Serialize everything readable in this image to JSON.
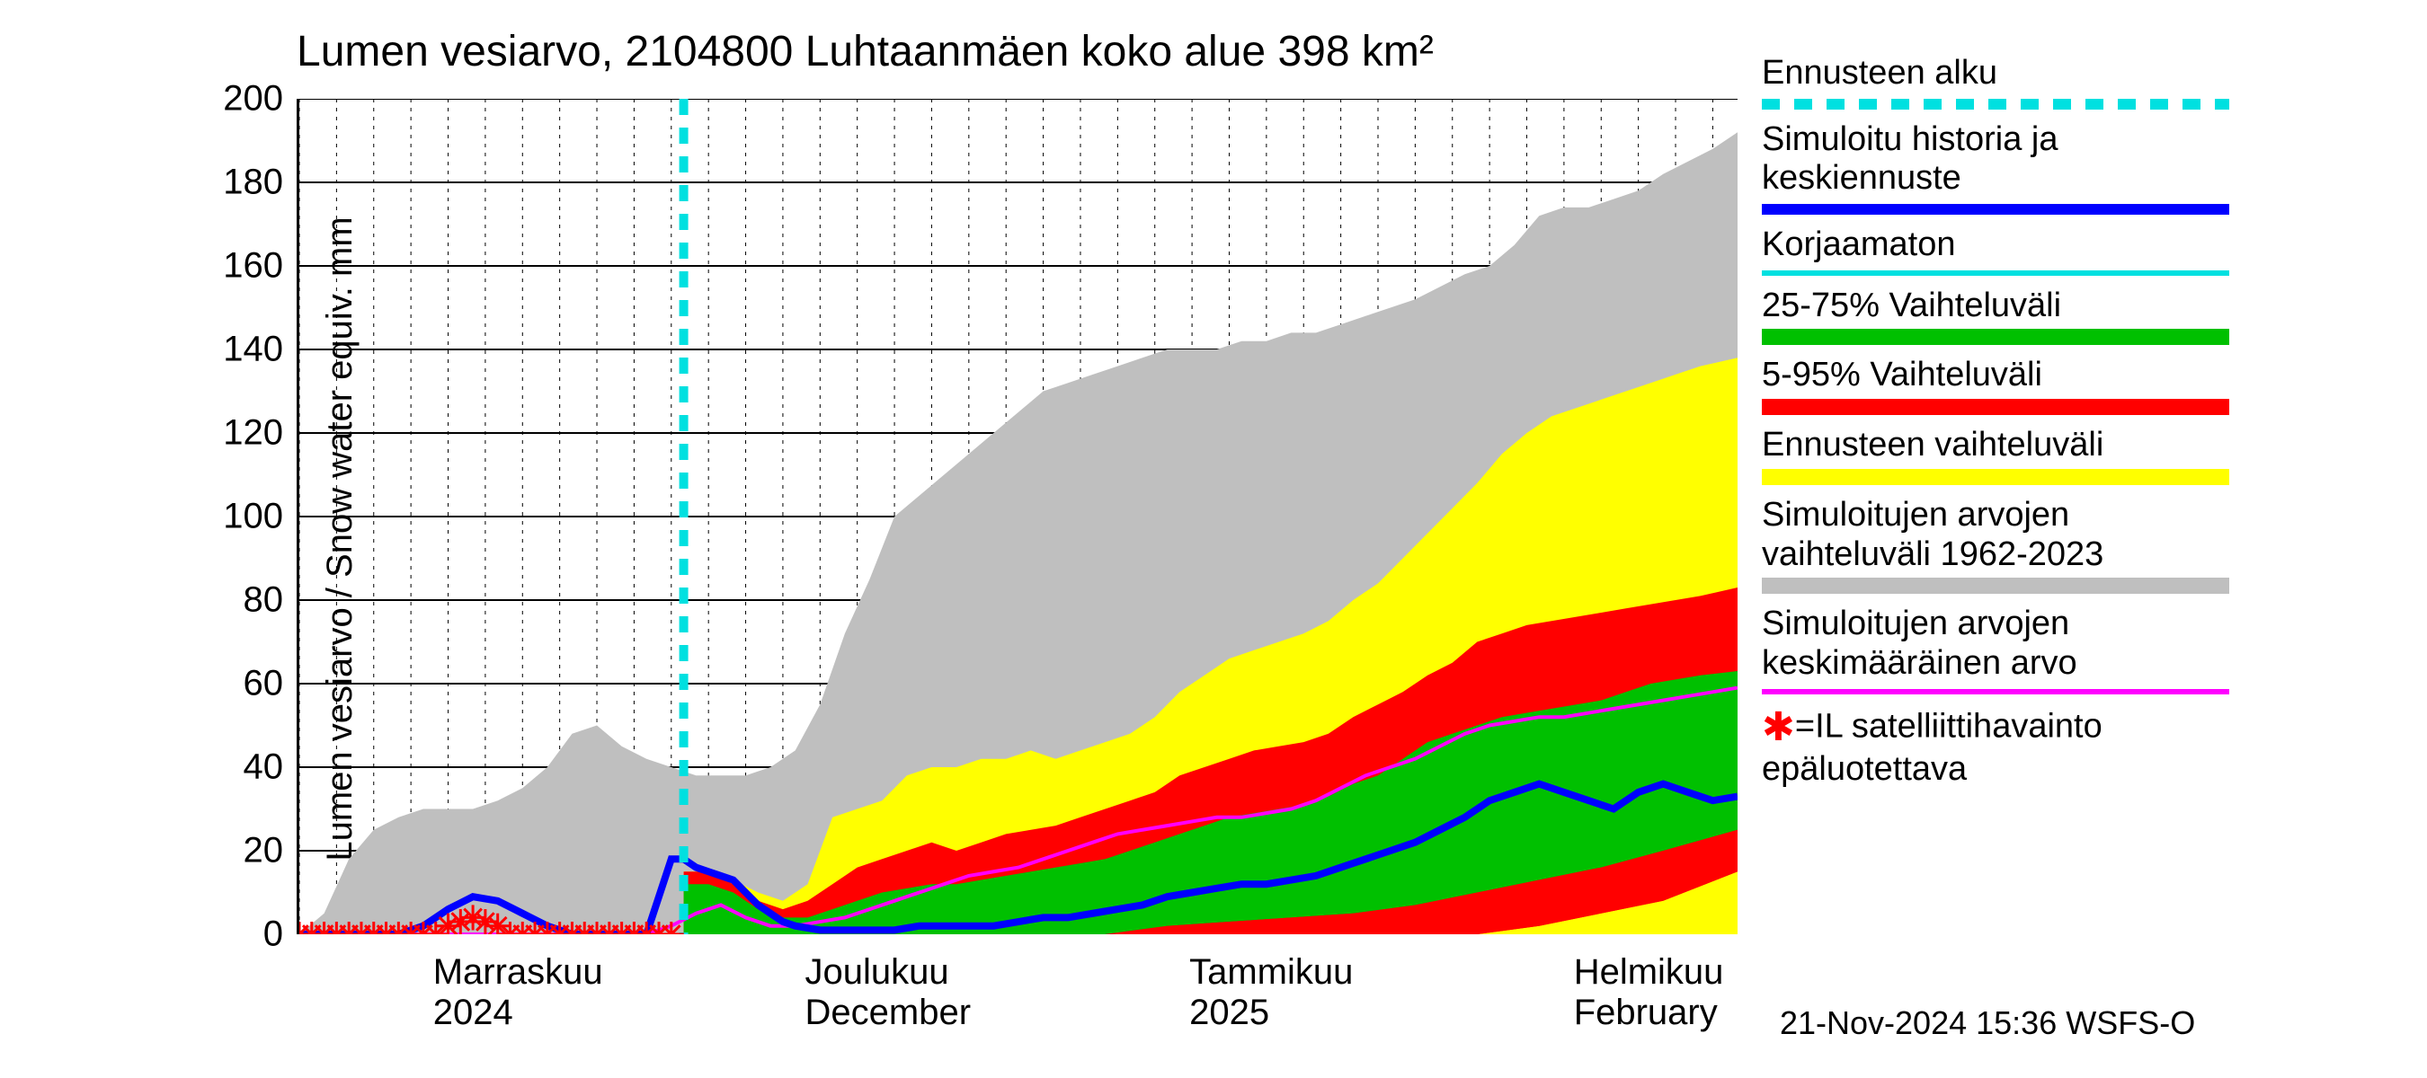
{
  "title": "Lumen vesiarvo, 2104800 Luhtaanmäen koko alue 398 km²",
  "y_axis_label": "Lumen vesiarvo / Snow water equiv.    mm",
  "footer": "21-Nov-2024 15:36 WSFS-O",
  "colors": {
    "gray_band": "#bfbfbf",
    "yellow_band": "#ffff00",
    "red_band": "#ff0000",
    "green_band": "#00c000",
    "blue_line": "#0000ff",
    "magenta_line": "#ff00ff",
    "cyan_dash": "#00e0e0",
    "cyan_thin": "#00e0e0",
    "marker_red": "#ff0000",
    "grid": "#000000",
    "bg": "#ffffff",
    "text": "#000000"
  },
  "axes": {
    "ymin": 0,
    "ymax": 200,
    "ytick_step": 20,
    "yticks": [
      0,
      20,
      40,
      60,
      80,
      100,
      120,
      140,
      160,
      180,
      200
    ],
    "x_start_date": "2024-10-21",
    "x_end_date": "2025-02-14",
    "x_days": 116
  },
  "x_month_labels": [
    {
      "label_top": "Marraskuu",
      "label_bot": "2024",
      "day_offset": 11
    },
    {
      "label_top": "Joulukuu",
      "label_bot": "December",
      "day_offset": 41
    },
    {
      "label_top": "Tammikuu",
      "label_bot": "2025",
      "day_offset": 72
    },
    {
      "label_top": "Helmikuu",
      "label_bot": "February",
      "day_offset": 103
    }
  ],
  "x_month_starts_day_offset": [
    11,
    41,
    72,
    103
  ],
  "forecast_start_day_offset": 31,
  "legend": [
    {
      "label": "Ennusteen alku",
      "type": "dashed",
      "color_key": "cyan_dash"
    },
    {
      "label": "Simuloitu historia ja\nkeskiennuste",
      "type": "line",
      "color_key": "blue_line",
      "thick": true
    },
    {
      "label": "Korjaamaton",
      "type": "line",
      "color_key": "cyan_thin",
      "thick": false
    },
    {
      "label": "25-75% Vaihteluväli",
      "type": "fill",
      "color_key": "green_band"
    },
    {
      "label": "5-95% Vaihteluväli",
      "type": "fill",
      "color_key": "red_band"
    },
    {
      "label": "Ennusteen vaihteluväli",
      "type": "fill",
      "color_key": "yellow_band"
    },
    {
      "label": "Simuloitujen arvojen\nvaihteluväli 1962-2023",
      "type": "fill",
      "color_key": "gray_band"
    },
    {
      "label": "Simuloitujen arvojen\nkeskimääräinen arvo",
      "type": "line",
      "color_key": "magenta_line",
      "thick": false
    },
    {
      "label": "=IL satelliittihavainto\nepäluotettava",
      "type": "marker",
      "color_key": "marker_red"
    }
  ],
  "series": {
    "gray_upper": [
      [
        0,
        0
      ],
      [
        2,
        5
      ],
      [
        4,
        18
      ],
      [
        6,
        25
      ],
      [
        8,
        28
      ],
      [
        10,
        30
      ],
      [
        12,
        30
      ],
      [
        14,
        30
      ],
      [
        16,
        32
      ],
      [
        18,
        35
      ],
      [
        20,
        40
      ],
      [
        22,
        48
      ],
      [
        24,
        50
      ],
      [
        26,
        45
      ],
      [
        28,
        42
      ],
      [
        30,
        40
      ],
      [
        32,
        38
      ],
      [
        34,
        38
      ],
      [
        36,
        38
      ],
      [
        38,
        40
      ],
      [
        40,
        44
      ],
      [
        42,
        55
      ],
      [
        44,
        72
      ],
      [
        46,
        85
      ],
      [
        48,
        100
      ],
      [
        50,
        105
      ],
      [
        52,
        110
      ],
      [
        54,
        115
      ],
      [
        56,
        120
      ],
      [
        58,
        125
      ],
      [
        60,
        130
      ],
      [
        62,
        132
      ],
      [
        64,
        134
      ],
      [
        66,
        136
      ],
      [
        68,
        138
      ],
      [
        70,
        140
      ],
      [
        72,
        140
      ],
      [
        74,
        140
      ],
      [
        76,
        142
      ],
      [
        78,
        142
      ],
      [
        80,
        144
      ],
      [
        82,
        144
      ],
      [
        84,
        146
      ],
      [
        86,
        148
      ],
      [
        88,
        150
      ],
      [
        90,
        152
      ],
      [
        92,
        155
      ],
      [
        94,
        158
      ],
      [
        96,
        160
      ],
      [
        98,
        165
      ],
      [
        100,
        172
      ],
      [
        102,
        174
      ],
      [
        104,
        174
      ],
      [
        106,
        176
      ],
      [
        108,
        178
      ],
      [
        110,
        182
      ],
      [
        112,
        185
      ],
      [
        114,
        188
      ],
      [
        116,
        192
      ]
    ],
    "gray_lower": [
      [
        0,
        0
      ],
      [
        20,
        0
      ],
      [
        40,
        0
      ],
      [
        60,
        0
      ],
      [
        80,
        0
      ],
      [
        100,
        0
      ],
      [
        110,
        0
      ],
      [
        112,
        1
      ],
      [
        114,
        2
      ],
      [
        116,
        3
      ]
    ],
    "yellow_upper": [
      [
        31,
        15
      ],
      [
        33,
        15
      ],
      [
        35,
        13
      ],
      [
        37,
        10
      ],
      [
        39,
        8
      ],
      [
        41,
        12
      ],
      [
        43,
        28
      ],
      [
        45,
        30
      ],
      [
        47,
        32
      ],
      [
        49,
        38
      ],
      [
        51,
        40
      ],
      [
        53,
        40
      ],
      [
        55,
        42
      ],
      [
        57,
        42
      ],
      [
        59,
        44
      ],
      [
        61,
        42
      ],
      [
        63,
        44
      ],
      [
        65,
        46
      ],
      [
        67,
        48
      ],
      [
        69,
        52
      ],
      [
        71,
        58
      ],
      [
        73,
        62
      ],
      [
        75,
        66
      ],
      [
        77,
        68
      ],
      [
        79,
        70
      ],
      [
        81,
        72
      ],
      [
        83,
        75
      ],
      [
        85,
        80
      ],
      [
        87,
        84
      ],
      [
        89,
        90
      ],
      [
        91,
        96
      ],
      [
        93,
        102
      ],
      [
        95,
        108
      ],
      [
        97,
        115
      ],
      [
        99,
        120
      ],
      [
        101,
        124
      ],
      [
        103,
        126
      ],
      [
        105,
        128
      ],
      [
        107,
        130
      ],
      [
        109,
        132
      ],
      [
        111,
        134
      ],
      [
        113,
        136
      ],
      [
        116,
        138
      ]
    ],
    "yellow_lower": [
      [
        31,
        0
      ],
      [
        40,
        0
      ],
      [
        50,
        0
      ],
      [
        60,
        0
      ],
      [
        70,
        0
      ],
      [
        80,
        0
      ],
      [
        90,
        0
      ],
      [
        100,
        0
      ],
      [
        110,
        0
      ],
      [
        116,
        0
      ]
    ],
    "red_upper": [
      [
        31,
        15
      ],
      [
        33,
        15
      ],
      [
        35,
        12
      ],
      [
        37,
        8
      ],
      [
        39,
        6
      ],
      [
        41,
        8
      ],
      [
        43,
        12
      ],
      [
        45,
        16
      ],
      [
        47,
        18
      ],
      [
        49,
        20
      ],
      [
        51,
        22
      ],
      [
        53,
        20
      ],
      [
        55,
        22
      ],
      [
        57,
        24
      ],
      [
        59,
        25
      ],
      [
        61,
        26
      ],
      [
        63,
        28
      ],
      [
        65,
        30
      ],
      [
        67,
        32
      ],
      [
        69,
        34
      ],
      [
        71,
        38
      ],
      [
        73,
        40
      ],
      [
        75,
        42
      ],
      [
        77,
        44
      ],
      [
        79,
        45
      ],
      [
        81,
        46
      ],
      [
        83,
        48
      ],
      [
        85,
        52
      ],
      [
        87,
        55
      ],
      [
        89,
        58
      ],
      [
        91,
        62
      ],
      [
        93,
        65
      ],
      [
        95,
        70
      ],
      [
        97,
        72
      ],
      [
        99,
        74
      ],
      [
        101,
        75
      ],
      [
        103,
        76
      ],
      [
        105,
        77
      ],
      [
        107,
        78
      ],
      [
        109,
        79
      ],
      [
        111,
        80
      ],
      [
        113,
        81
      ],
      [
        116,
        83
      ]
    ],
    "red_lower": [
      [
        31,
        0
      ],
      [
        40,
        0
      ],
      [
        50,
        0
      ],
      [
        60,
        0
      ],
      [
        70,
        0
      ],
      [
        80,
        0
      ],
      [
        90,
        0
      ],
      [
        95,
        0
      ],
      [
        100,
        2
      ],
      [
        105,
        5
      ],
      [
        110,
        8
      ],
      [
        116,
        15
      ]
    ],
    "green_upper": [
      [
        31,
        12
      ],
      [
        33,
        12
      ],
      [
        35,
        10
      ],
      [
        37,
        6
      ],
      [
        39,
        4
      ],
      [
        41,
        4
      ],
      [
        43,
        6
      ],
      [
        45,
        8
      ],
      [
        47,
        10
      ],
      [
        49,
        11
      ],
      [
        51,
        12
      ],
      [
        53,
        12
      ],
      [
        55,
        13
      ],
      [
        57,
        14
      ],
      [
        59,
        15
      ],
      [
        61,
        16
      ],
      [
        63,
        17
      ],
      [
        65,
        18
      ],
      [
        67,
        20
      ],
      [
        69,
        22
      ],
      [
        71,
        24
      ],
      [
        73,
        26
      ],
      [
        75,
        28
      ],
      [
        77,
        29
      ],
      [
        79,
        30
      ],
      [
        81,
        31
      ],
      [
        83,
        33
      ],
      [
        85,
        36
      ],
      [
        87,
        38
      ],
      [
        89,
        42
      ],
      [
        91,
        46
      ],
      [
        93,
        48
      ],
      [
        95,
        50
      ],
      [
        97,
        52
      ],
      [
        99,
        53
      ],
      [
        101,
        54
      ],
      [
        103,
        55
      ],
      [
        105,
        56
      ],
      [
        107,
        58
      ],
      [
        109,
        60
      ],
      [
        111,
        61
      ],
      [
        113,
        62
      ],
      [
        116,
        63
      ]
    ],
    "green_lower": [
      [
        31,
        0
      ],
      [
        40,
        0
      ],
      [
        50,
        0
      ],
      [
        60,
        0
      ],
      [
        65,
        0
      ],
      [
        70,
        2
      ],
      [
        75,
        3
      ],
      [
        80,
        4
      ],
      [
        85,
        5
      ],
      [
        90,
        7
      ],
      [
        95,
        10
      ],
      [
        100,
        13
      ],
      [
        105,
        16
      ],
      [
        110,
        20
      ],
      [
        116,
        25
      ]
    ],
    "blue": [
      [
        0,
        0
      ],
      [
        2,
        0
      ],
      [
        4,
        0
      ],
      [
        6,
        0
      ],
      [
        8,
        0
      ],
      [
        10,
        2
      ],
      [
        12,
        6
      ],
      [
        14,
        9
      ],
      [
        16,
        8
      ],
      [
        18,
        5
      ],
      [
        20,
        2
      ],
      [
        22,
        0
      ],
      [
        24,
        0
      ],
      [
        26,
        0
      ],
      [
        28,
        0
      ],
      [
        30,
        18
      ],
      [
        31,
        18
      ],
      [
        32,
        16
      ],
      [
        33,
        15
      ],
      [
        34,
        14
      ],
      [
        35,
        13
      ],
      [
        36,
        10
      ],
      [
        37,
        7
      ],
      [
        38,
        5
      ],
      [
        39,
        3
      ],
      [
        40,
        2
      ],
      [
        42,
        1
      ],
      [
        44,
        1
      ],
      [
        46,
        1
      ],
      [
        48,
        1
      ],
      [
        50,
        2
      ],
      [
        52,
        2
      ],
      [
        54,
        2
      ],
      [
        56,
        2
      ],
      [
        58,
        3
      ],
      [
        60,
        4
      ],
      [
        62,
        4
      ],
      [
        64,
        5
      ],
      [
        66,
        6
      ],
      [
        68,
        7
      ],
      [
        70,
        9
      ],
      [
        72,
        10
      ],
      [
        74,
        11
      ],
      [
        76,
        12
      ],
      [
        78,
        12
      ],
      [
        80,
        13
      ],
      [
        82,
        14
      ],
      [
        84,
        16
      ],
      [
        86,
        18
      ],
      [
        88,
        20
      ],
      [
        90,
        22
      ],
      [
        92,
        25
      ],
      [
        94,
        28
      ],
      [
        96,
        32
      ],
      [
        98,
        34
      ],
      [
        100,
        36
      ],
      [
        102,
        34
      ],
      [
        104,
        32
      ],
      [
        106,
        30
      ],
      [
        108,
        34
      ],
      [
        110,
        36
      ],
      [
        112,
        34
      ],
      [
        114,
        32
      ],
      [
        116,
        33
      ]
    ],
    "magenta": [
      [
        0,
        0
      ],
      [
        5,
        0
      ],
      [
        10,
        0
      ],
      [
        15,
        0
      ],
      [
        20,
        0
      ],
      [
        25,
        0
      ],
      [
        28,
        0
      ],
      [
        30,
        2
      ],
      [
        32,
        5
      ],
      [
        34,
        7
      ],
      [
        36,
        4
      ],
      [
        38,
        2
      ],
      [
        40,
        2
      ],
      [
        42,
        3
      ],
      [
        44,
        4
      ],
      [
        46,
        6
      ],
      [
        48,
        8
      ],
      [
        50,
        10
      ],
      [
        52,
        12
      ],
      [
        54,
        14
      ],
      [
        56,
        15
      ],
      [
        58,
        16
      ],
      [
        60,
        18
      ],
      [
        62,
        20
      ],
      [
        64,
        22
      ],
      [
        66,
        24
      ],
      [
        68,
        25
      ],
      [
        70,
        26
      ],
      [
        72,
        27
      ],
      [
        74,
        28
      ],
      [
        76,
        28
      ],
      [
        78,
        29
      ],
      [
        80,
        30
      ],
      [
        82,
        32
      ],
      [
        84,
        35
      ],
      [
        86,
        38
      ],
      [
        88,
        40
      ],
      [
        90,
        42
      ],
      [
        92,
        45
      ],
      [
        94,
        48
      ],
      [
        96,
        50
      ],
      [
        98,
        51
      ],
      [
        100,
        52
      ],
      [
        102,
        52
      ],
      [
        104,
        53
      ],
      [
        106,
        54
      ],
      [
        108,
        55
      ],
      [
        110,
        56
      ],
      [
        112,
        57
      ],
      [
        114,
        58
      ],
      [
        116,
        59
      ]
    ],
    "red_markers_days": [
      0,
      1,
      2,
      3,
      4,
      5,
      6,
      7,
      8,
      9,
      10,
      11,
      12,
      13,
      14,
      15,
      16,
      17,
      18,
      19,
      20,
      21,
      22,
      23,
      24,
      25,
      26,
      27,
      28,
      29,
      30
    ],
    "red_markers_y": [
      0,
      0,
      0,
      0,
      0,
      0,
      0,
      0,
      0,
      0,
      0,
      0,
      2,
      3,
      4,
      3,
      2,
      0,
      0,
      0,
      0,
      0,
      0,
      0,
      0,
      0,
      0,
      0,
      0,
      0,
      0
    ]
  },
  "style": {
    "title_fontsize": 48,
    "axis_label_fontsize": 40,
    "tick_fontsize": 40,
    "legend_fontsize": 38,
    "footer_fontsize": 36,
    "blue_linewidth": 8,
    "magenta_linewidth": 4,
    "cyan_dash_width": 10,
    "grid_dash": "4 6",
    "marker_size": 14
  }
}
